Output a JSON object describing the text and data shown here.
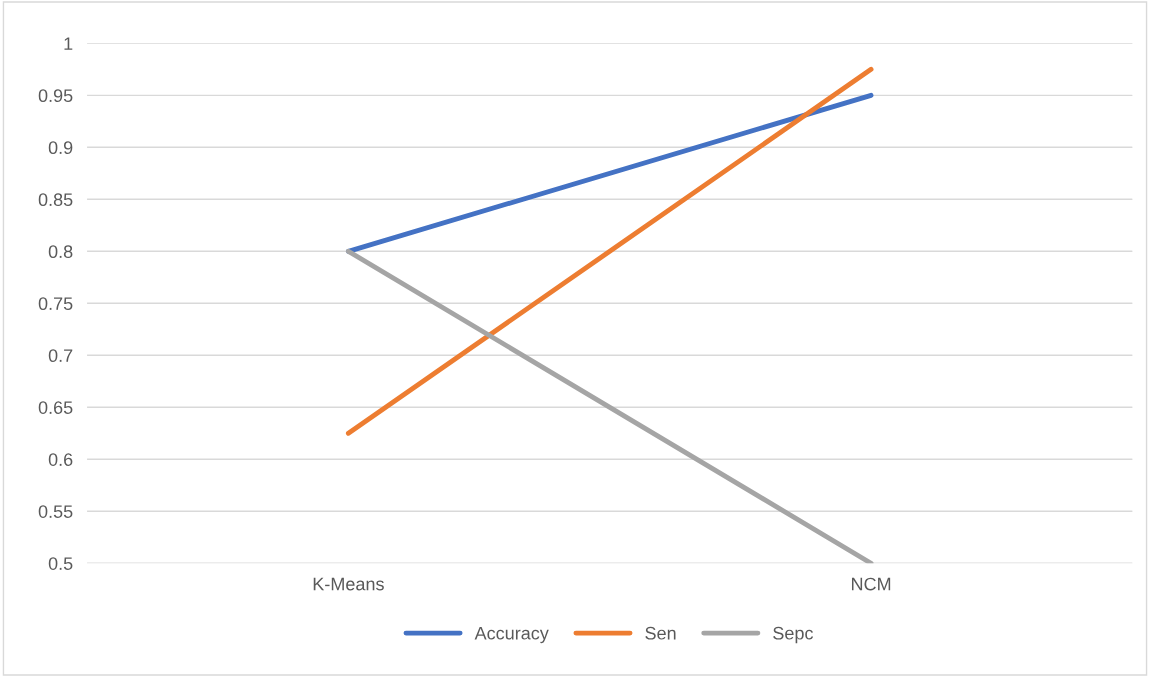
{
  "chart_data": {
    "type": "line",
    "categories": [
      "K-Means",
      "NCM"
    ],
    "series": [
      {
        "name": "Accuracy",
        "color": "#4472c4",
        "values": [
          0.8,
          0.95
        ]
      },
      {
        "name": "Sen",
        "color": "#ed7d31",
        "values": [
          0.625,
          0.975
        ]
      },
      {
        "name": "Sepc",
        "color": "#a5a5a5",
        "values": [
          0.8,
          0.5
        ]
      }
    ],
    "ylim": [
      0.5,
      1
    ],
    "yticks": [
      0.5,
      0.55,
      0.6,
      0.65,
      0.7,
      0.75,
      0.8,
      0.85,
      0.9,
      0.95,
      1
    ],
    "grid": "y",
    "legend": "bottom",
    "marker": "none",
    "line_style": "solid"
  }
}
